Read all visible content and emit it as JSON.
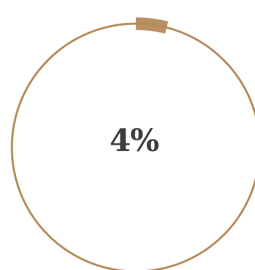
{
  "progress": {
    "label": "4%",
    "value_percent": 4
  },
  "colors": {
    "ring": "#b58a5a",
    "text": "#3d3d3d",
    "background": "#ffffff"
  }
}
